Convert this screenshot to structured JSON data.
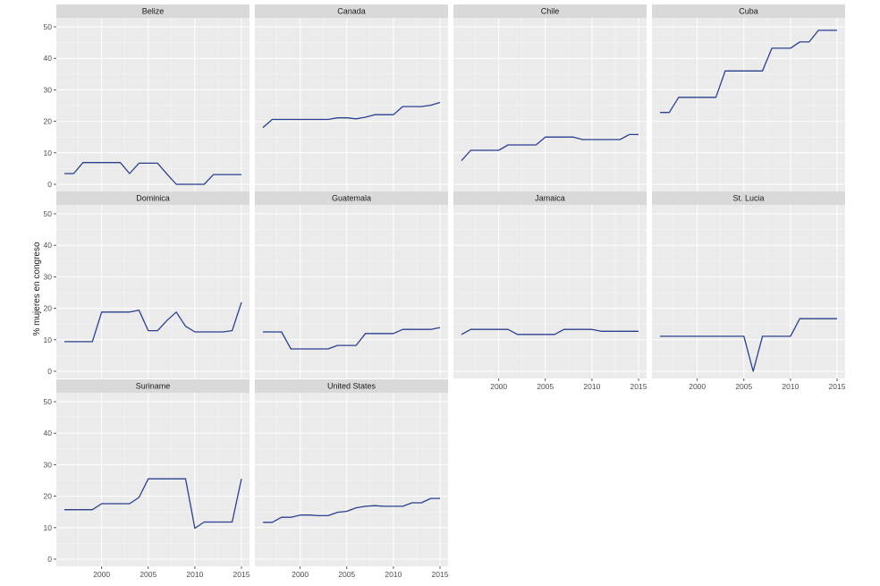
{
  "chart_data": {
    "type": "line",
    "facet": true,
    "title": "",
    "xlabel": "",
    "ylabel": "% mujeres en congreso",
    "xlim": [
      1996,
      2015
    ],
    "ylim": [
      0,
      50
    ],
    "x_ticks": [
      2000,
      2005,
      2010,
      2015
    ],
    "y_ticks": [
      0,
      10,
      20,
      30,
      40,
      50
    ],
    "grid": true,
    "line_color": "#2b3f8f",
    "x": [
      1996,
      1997,
      1998,
      1999,
      2000,
      2001,
      2002,
      2003,
      2004,
      2005,
      2006,
      2007,
      2008,
      2009,
      2010,
      2011,
      2012,
      2013,
      2014,
      2015
    ],
    "panels": [
      {
        "name": "Belize",
        "values": [
          3.4,
          3.4,
          6.9,
          6.9,
          6.9,
          6.9,
          6.9,
          3.4,
          6.7,
          6.7,
          6.7,
          3.3,
          0,
          0,
          0,
          0,
          3.1,
          3.1,
          3.1,
          3.1
        ]
      },
      {
        "name": "Canada",
        "values": [
          18,
          20.6,
          20.6,
          20.6,
          20.6,
          20.6,
          20.6,
          20.6,
          21.1,
          21.1,
          20.8,
          21.3,
          22.1,
          22.1,
          22.1,
          24.7,
          24.7,
          24.7,
          25.1,
          26
        ]
      },
      {
        "name": "Chile",
        "values": [
          7.5,
          10.8,
          10.8,
          10.8,
          10.8,
          12.5,
          12.5,
          12.5,
          12.5,
          15,
          15,
          15,
          15,
          14.2,
          14.2,
          14.2,
          14.2,
          14.2,
          15.8,
          15.8
        ]
      },
      {
        "name": "Cuba",
        "values": [
          22.8,
          22.8,
          27.6,
          27.6,
          27.6,
          27.6,
          27.6,
          36,
          36,
          36,
          36,
          36,
          43.2,
          43.2,
          43.2,
          45.2,
          45.2,
          48.9,
          48.9,
          48.9
        ]
      },
      {
        "name": "Dominica",
        "values": [
          9.4,
          9.4,
          9.4,
          9.4,
          18.8,
          18.8,
          18.8,
          18.8,
          19.4,
          12.9,
          12.9,
          16.1,
          18.8,
          14.3,
          12.5,
          12.5,
          12.5,
          12.5,
          12.9,
          21.9
        ]
      },
      {
        "name": "Guatemala",
        "values": [
          12.5,
          12.5,
          12.5,
          7.1,
          7.1,
          7.1,
          7.1,
          7.1,
          8.2,
          8.2,
          8.2,
          12,
          12,
          12,
          12,
          13.3,
          13.3,
          13.3,
          13.3,
          13.9
        ]
      },
      {
        "name": "Jamaica",
        "values": [
          11.7,
          13.3,
          13.3,
          13.3,
          13.3,
          13.3,
          11.7,
          11.7,
          11.7,
          11.7,
          11.7,
          13.3,
          13.3,
          13.3,
          13.3,
          12.7,
          12.7,
          12.7,
          12.7,
          12.7
        ]
      },
      {
        "name": "St. Lucia",
        "values": [
          11.1,
          11.1,
          11.1,
          11.1,
          11.1,
          11.1,
          11.1,
          11.1,
          11.1,
          11.1,
          0,
          11.1,
          11.1,
          11.1,
          11.1,
          16.7,
          16.7,
          16.7,
          16.7,
          16.7
        ]
      },
      {
        "name": "Suriname",
        "values": [
          15.7,
          15.7,
          15.7,
          15.7,
          17.6,
          17.6,
          17.6,
          17.6,
          19.6,
          25.5,
          25.5,
          25.5,
          25.5,
          25.5,
          9.8,
          11.8,
          11.8,
          11.8,
          11.8,
          25.5
        ]
      },
      {
        "name": "United States",
        "values": [
          11.7,
          11.7,
          13.3,
          13.3,
          14,
          14,
          13.8,
          13.8,
          14.9,
          15.2,
          16.3,
          16.8,
          17,
          16.8,
          16.8,
          16.8,
          17.9,
          17.9,
          19.3,
          19.3
        ]
      }
    ]
  }
}
